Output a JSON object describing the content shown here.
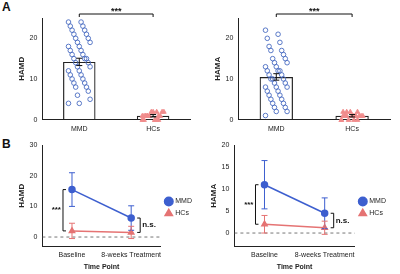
{
  "chart_data": [
    {
      "panel": "A",
      "type": "bar",
      "categories": [
        "MMD",
        "HCs"
      ],
      "y_label": "HAMD",
      "values": [
        14.2,
        0.95
      ],
      "errors": [
        0.9,
        0.3
      ],
      "colors": [
        "#4a6cc2",
        "#f08c8c"
      ],
      "points": [
        [
          24,
          24,
          23,
          23,
          22,
          22,
          21,
          21,
          20,
          20,
          19,
          19,
          18,
          18,
          17,
          17,
          16,
          16,
          15,
          15,
          15,
          14,
          14,
          13,
          13,
          12,
          12,
          11,
          11,
          10,
          10,
          9,
          9,
          8,
          8,
          7,
          6,
          5,
          4,
          4
        ],
        [
          0,
          0,
          0,
          0,
          1,
          1,
          1,
          1,
          1,
          2,
          2,
          2,
          2,
          1,
          0,
          1,
          2,
          1,
          0,
          1
        ]
      ],
      "ylim": [
        0,
        25
      ],
      "yticks": [
        0,
        10,
        20
      ],
      "grid": false,
      "annotations": [
        {
          "text": "***",
          "between": [
            0,
            1
          ]
        }
      ]
    },
    {
      "type": "bar",
      "categories": [
        "MMD",
        "HCs"
      ],
      "y_label": "HAMA",
      "values": [
        10.5,
        0.95
      ],
      "errors": [
        0.8,
        0.3
      ],
      "colors": [
        "#4a6cc2",
        "#f08c8c"
      ],
      "points": [
        [
          22,
          21,
          20,
          19,
          18,
          17,
          17,
          16,
          15,
          15,
          14,
          14,
          13,
          13,
          12,
          12,
          12,
          11,
          11,
          10,
          10,
          10,
          9,
          9,
          8,
          8,
          8,
          7,
          7,
          6,
          6,
          5,
          5,
          4,
          4,
          3,
          3,
          2,
          2,
          1
        ],
        [
          0,
          0,
          1,
          1,
          1,
          2,
          2,
          1,
          0,
          1,
          2,
          1,
          1,
          0,
          1,
          2,
          1,
          1,
          0,
          1
        ]
      ],
      "ylim": [
        0,
        25
      ],
      "yticks": [
        0,
        10,
        20
      ],
      "grid": false,
      "annotations": [
        {
          "text": "***",
          "between": [
            0,
            1
          ]
        }
      ]
    },
    {
      "panel": "B",
      "type": "line",
      "categories": [
        "Baseline",
        "8-weeks Treatment"
      ],
      "x_label": "Time Point",
      "y_label": "HAMD",
      "series": [
        {
          "name": "MMD",
          "color": "#3d5fcf",
          "marker": "circle",
          "values": [
            15.5,
            6.2
          ],
          "errors": [
            5.5,
            4.0
          ]
        },
        {
          "name": "HCs",
          "color": "#e57373",
          "marker": "triangle",
          "values": [
            2.0,
            1.5
          ],
          "errors": [
            2.5,
            2.0
          ]
        }
      ],
      "ylim": [
        -3,
        30
      ],
      "yticks": [
        0,
        10,
        20,
        30
      ],
      "reference_line": 0,
      "legend": "right",
      "grid": false,
      "annotations": [
        {
          "text": "***",
          "at": 0
        },
        {
          "text": "n.s.",
          "at": 1
        }
      ]
    },
    {
      "type": "line",
      "categories": [
        "Baseline",
        "8-weeks Treatment"
      ],
      "x_label": "Time Point",
      "y_label": "HAMA",
      "series": [
        {
          "name": "MMD",
          "color": "#3d5fcf",
          "marker": "circle",
          "values": [
            11.0,
            4.5
          ],
          "errors": [
            5.5,
            3.5
          ]
        },
        {
          "name": "HCs",
          "color": "#e57373",
          "marker": "triangle",
          "values": [
            2.0,
            1.2
          ],
          "errors": [
            2.0,
            1.5
          ]
        }
      ],
      "ylim": [
        -3,
        20
      ],
      "yticks": [
        0,
        5,
        10,
        15,
        20
      ],
      "reference_line": 0,
      "legend": "right",
      "grid": false,
      "annotations": [
        {
          "text": "***",
          "at": 0
        },
        {
          "text": "n.s.",
          "at": 1
        }
      ]
    }
  ]
}
